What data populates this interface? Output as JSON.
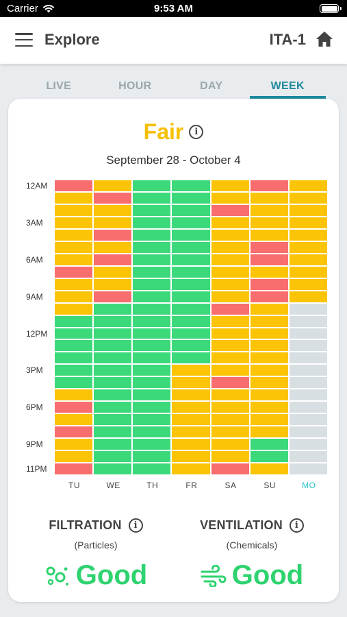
{
  "status_bar": {
    "carrier": "Carrier",
    "time": "9:53 AM"
  },
  "nav": {
    "title": "Explore",
    "device": "ITA-1"
  },
  "tabs": [
    {
      "label": "LIVE",
      "active": false
    },
    {
      "label": "HOUR",
      "active": false
    },
    {
      "label": "DAY",
      "active": false
    },
    {
      "label": "WEEK",
      "active": true
    }
  ],
  "summary": {
    "status": "Fair",
    "date_range": "September 28 - October 4"
  },
  "colors": {
    "good": "#3bd97a",
    "fair": "#fcc407",
    "poor": "#f86d6d",
    "none": "#d8dfe3",
    "accent": "#1d8a9c",
    "today": "#26bfc9"
  },
  "heatmap": {
    "hour_labels": [
      {
        "label": "12AM",
        "hour": 0
      },
      {
        "label": "3AM",
        "hour": 3
      },
      {
        "label": "6AM",
        "hour": 6
      },
      {
        "label": "9AM",
        "hour": 9
      },
      {
        "label": "12PM",
        "hour": 12
      },
      {
        "label": "3PM",
        "hour": 15
      },
      {
        "label": "6PM",
        "hour": 18
      },
      {
        "label": "9PM",
        "hour": 21
      },
      {
        "label": "11PM",
        "hour": 23
      }
    ],
    "days": [
      {
        "label": "TU",
        "today": false,
        "hours": [
          "poor",
          "fair",
          "fair",
          "fair",
          "fair",
          "fair",
          "fair",
          "poor",
          "fair",
          "fair",
          "fair",
          "good",
          "good",
          "good",
          "good",
          "good",
          "good",
          "fair",
          "poor",
          "fair",
          "poor",
          "fair",
          "fair",
          "poor"
        ]
      },
      {
        "label": "WE",
        "today": false,
        "hours": [
          "fair",
          "poor",
          "fair",
          "fair",
          "poor",
          "fair",
          "poor",
          "fair",
          "fair",
          "poor",
          "good",
          "good",
          "good",
          "good",
          "good",
          "good",
          "good",
          "good",
          "good",
          "good",
          "good",
          "good",
          "good",
          "good"
        ]
      },
      {
        "label": "TH",
        "today": false,
        "hours": [
          "good",
          "good",
          "good",
          "good",
          "good",
          "good",
          "good",
          "good",
          "good",
          "good",
          "good",
          "good",
          "good",
          "good",
          "good",
          "good",
          "good",
          "good",
          "good",
          "good",
          "good",
          "good",
          "good",
          "good"
        ]
      },
      {
        "label": "FR",
        "today": false,
        "hours": [
          "good",
          "good",
          "good",
          "good",
          "good",
          "good",
          "good",
          "good",
          "good",
          "good",
          "good",
          "good",
          "good",
          "good",
          "good",
          "fair",
          "fair",
          "fair",
          "fair",
          "fair",
          "fair",
          "fair",
          "fair",
          "fair"
        ]
      },
      {
        "label": "SA",
        "today": false,
        "hours": [
          "fair",
          "fair",
          "poor",
          "fair",
          "fair",
          "fair",
          "fair",
          "fair",
          "fair",
          "fair",
          "poor",
          "fair",
          "fair",
          "fair",
          "fair",
          "fair",
          "poor",
          "fair",
          "fair",
          "fair",
          "fair",
          "fair",
          "fair",
          "poor"
        ]
      },
      {
        "label": "SU",
        "today": false,
        "hours": [
          "poor",
          "fair",
          "fair",
          "fair",
          "fair",
          "poor",
          "poor",
          "fair",
          "poor",
          "poor",
          "fair",
          "fair",
          "fair",
          "fair",
          "fair",
          "fair",
          "fair",
          "fair",
          "fair",
          "fair",
          "fair",
          "good",
          "good",
          "fair"
        ]
      },
      {
        "label": "MO",
        "today": true,
        "hours": [
          "fair",
          "fair",
          "fair",
          "fair",
          "fair",
          "fair",
          "fair",
          "fair",
          "fair",
          "fair",
          "none",
          "none",
          "none",
          "none",
          "none",
          "none",
          "none",
          "none",
          "none",
          "none",
          "none",
          "none",
          "none",
          "none"
        ]
      }
    ]
  },
  "filtration": {
    "title": "FILTRATION",
    "subtitle": "(Particles)",
    "value": "Good",
    "icon": "particles-icon"
  },
  "ventilation": {
    "title": "VENTILATION",
    "subtitle": "(Chemicals)",
    "value": "Good",
    "icon": "wind-icon"
  }
}
